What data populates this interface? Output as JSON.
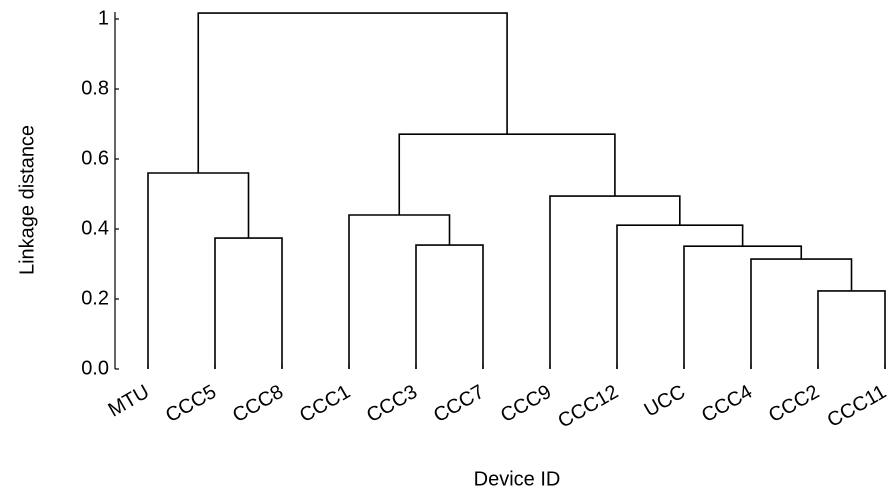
{
  "chart_data": {
    "type": "dendrogram",
    "y_label": "Linkage distance",
    "x_label": "Device ID",
    "leaves": [
      "MTU",
      "CCC5",
      "CCC8",
      "CCC1",
      "CCC3",
      "CCC7",
      "CCC9",
      "CCC12",
      "UCC",
      "CCC4",
      "CCC2",
      "CCC11"
    ],
    "merges": [
      {
        "children": [
          1,
          2
        ],
        "height": 0.374
      },
      {
        "children": [
          0,
          12
        ],
        "height": 0.56
      },
      {
        "children": [
          4,
          5
        ],
        "height": 0.354
      },
      {
        "children": [
          3,
          14
        ],
        "height": 0.44
      },
      {
        "children": [
          10,
          11
        ],
        "height": 0.223
      },
      {
        "children": [
          9,
          16
        ],
        "height": 0.314
      },
      {
        "children": [
          8,
          17
        ],
        "height": 0.351
      },
      {
        "children": [
          7,
          18
        ],
        "height": 0.411
      },
      {
        "children": [
          6,
          19
        ],
        "height": 0.494
      },
      {
        "children": [
          15,
          20
        ],
        "height": 0.671
      },
      {
        "children": [
          13,
          21
        ],
        "height": 1.017
      }
    ],
    "color": "#000000",
    "ylim": [
      0,
      1.02
    ],
    "yticks": [
      {
        "value": 0,
        "label": "0.0"
      },
      0.2,
      0.4,
      0.6,
      0.8,
      1
    ]
  }
}
